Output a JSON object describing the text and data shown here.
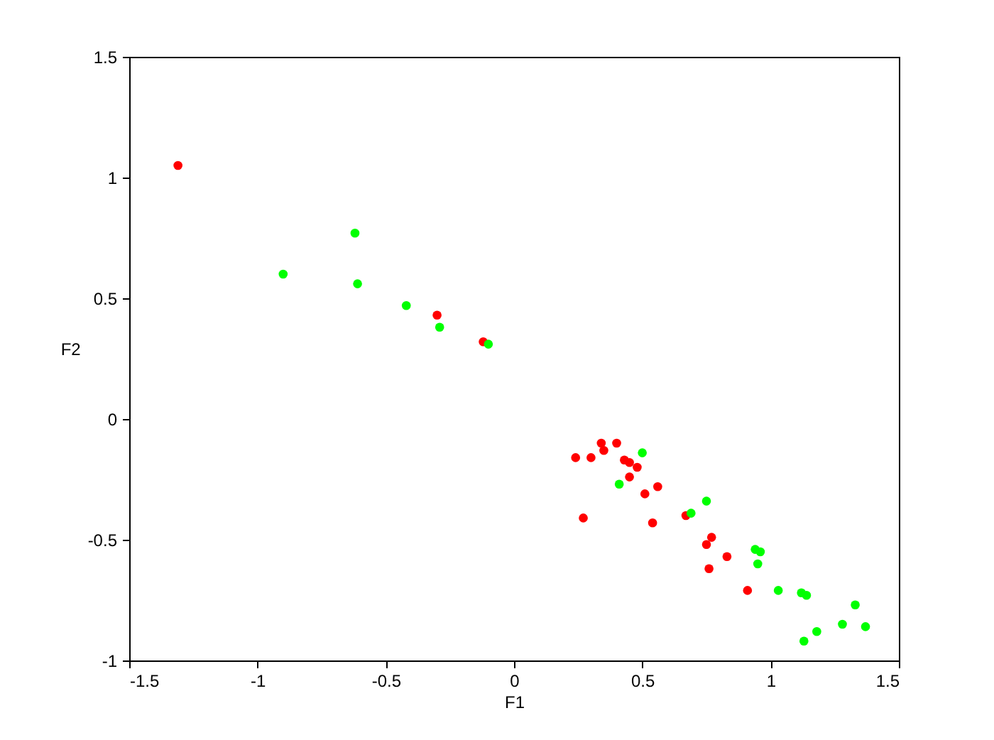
{
  "chart_data": {
    "type": "scatter",
    "xlabel": "F1",
    "ylabel": "F2",
    "xlim": [
      -1.5,
      1.5
    ],
    "ylim": [
      -1,
      1.5
    ],
    "xticks": [
      -1.5,
      -1,
      -0.5,
      0,
      0.5,
      1,
      1.5
    ],
    "yticks": [
      -1,
      -0.5,
      0,
      0.5,
      1,
      1.5
    ],
    "grid": false,
    "marker": "circle",
    "series": [
      {
        "color": "#ff0000",
        "x": [
          -1.31,
          -0.3,
          -0.12,
          0.24,
          0.3,
          0.34,
          0.35,
          0.4,
          0.43,
          0.45,
          0.45,
          0.48,
          0.51,
          0.56,
          0.54,
          0.27,
          0.67,
          0.75,
          0.77,
          0.76,
          0.83,
          0.91
        ],
        "values": [
          1.05,
          0.43,
          0.32,
          -0.16,
          -0.16,
          -0.1,
          -0.13,
          -0.1,
          -0.17,
          -0.18,
          -0.24,
          -0.2,
          -0.31,
          -0.28,
          -0.43,
          -0.41,
          -0.4,
          -0.52,
          -0.49,
          -0.62,
          -0.57,
          -0.71
        ]
      },
      {
        "color": "#00ff00",
        "x": [
          -0.9,
          -0.62,
          -0.61,
          -0.42,
          -0.29,
          -0.1,
          0.41,
          0.5,
          0.69,
          0.75,
          0.94,
          0.96,
          0.95,
          1.03,
          1.12,
          1.14,
          1.13,
          1.18,
          1.28,
          1.33,
          1.37
        ],
        "values": [
          0.6,
          0.77,
          0.56,
          0.47,
          0.38,
          0.31,
          -0.27,
          -0.14,
          -0.39,
          -0.34,
          -0.54,
          -0.55,
          -0.6,
          -0.71,
          -0.72,
          -0.73,
          -0.92,
          -0.88,
          -0.85,
          -0.77,
          -0.86
        ]
      }
    ]
  }
}
